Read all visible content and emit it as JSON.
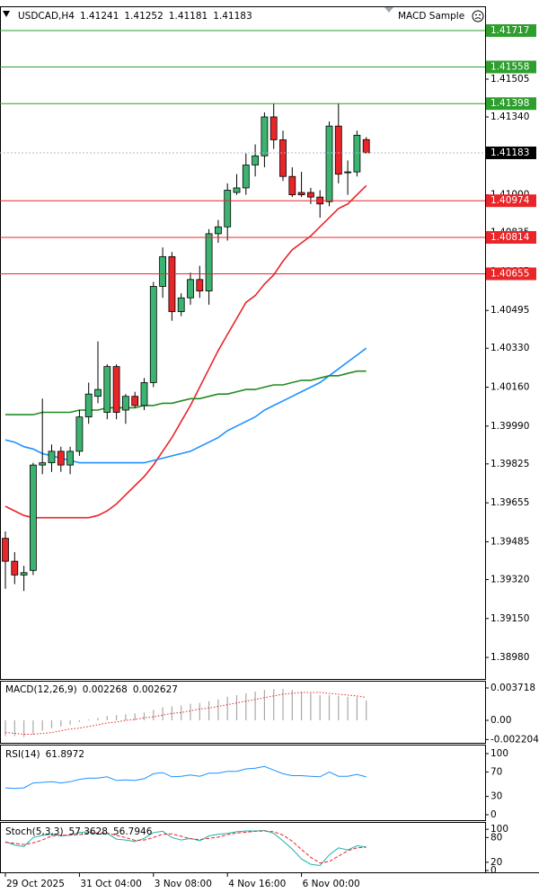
{
  "expert_name": "MACD Sample",
  "chart_data": [
    {
      "type": "candlestick",
      "title": "USDCAD,H4",
      "categories": [
        "29 Oct 2025",
        null,
        null,
        null,
        null,
        null,
        null,
        null,
        "31 Oct 04:00",
        null,
        null,
        null,
        null,
        null,
        null,
        null,
        "3 Nov 08:00",
        null,
        null,
        null,
        null,
        null,
        null,
        null,
        "4 Nov 16:00",
        null,
        null,
        null,
        null,
        null,
        null,
        null,
        "6 Nov 00:00",
        null,
        null,
        null,
        null,
        null,
        null,
        null
      ],
      "open": [
        1.395,
        1.394,
        1.3934,
        1.3936,
        1.3982,
        1.3983,
        1.3988,
        1.3982,
        1.3988,
        1.4003,
        1.4012,
        1.4005,
        1.4025,
        1.4006,
        1.4012,
        1.4008,
        1.4018,
        1.406,
        1.4073,
        1.4049,
        1.4055,
        1.4063,
        1.4058,
        1.4083,
        1.4086,
        1.4101,
        1.4103,
        1.4113,
        1.4117,
        1.4134,
        1.4124,
        1.4108,
        1.4101,
        1.4101,
        1.4099,
        1.4097,
        1.413,
        1.411,
        1.411,
        1.41241
      ],
      "high": [
        1.3953,
        1.3944,
        1.3938,
        1.3983,
        1.4011,
        1.3991,
        1.399,
        1.399,
        1.4006,
        1.4018,
        1.4036,
        1.4026,
        1.4026,
        1.4013,
        1.4014,
        1.402,
        1.4062,
        1.4077,
        1.4075,
        1.4057,
        1.4066,
        1.4069,
        1.4085,
        1.4089,
        1.4105,
        1.4109,
        1.4118,
        1.4122,
        1.4136,
        1.414,
        1.4128,
        1.4112,
        1.411,
        1.4103,
        1.4102,
        1.4132,
        1.414,
        1.4115,
        1.4128,
        1.41252
      ],
      "low": [
        1.3928,
        1.393,
        1.3927,
        1.3934,
        1.3978,
        1.3979,
        1.3979,
        1.3978,
        1.3986,
        1.4,
        1.4009,
        1.4002,
        1.4002,
        1.4,
        1.4007,
        1.4006,
        1.4016,
        1.4055,
        1.4045,
        1.4047,
        1.4052,
        1.4055,
        1.4052,
        1.4079,
        1.408,
        1.41,
        1.41,
        1.4108,
        1.4112,
        1.412,
        1.4106,
        1.4099,
        1.4099,
        1.4096,
        1.409,
        1.4095,
        1.4105,
        1.41,
        1.4108,
        1.41181
      ],
      "close": [
        1.394,
        1.3934,
        1.3935,
        1.3982,
        1.3983,
        1.3988,
        1.3982,
        1.3988,
        1.4003,
        1.4013,
        1.4015,
        1.4025,
        1.4005,
        1.4012,
        1.4008,
        1.4018,
        1.406,
        1.4073,
        1.4049,
        1.4055,
        1.4063,
        1.4058,
        1.4083,
        1.4086,
        1.4102,
        1.4103,
        1.4113,
        1.4117,
        1.4134,
        1.4124,
        1.4108,
        1.41,
        1.41,
        1.4099,
        1.4096,
        1.413,
        1.4109,
        1.411,
        1.4126,
        1.41183
      ],
      "up_color": "#3cb371",
      "down_color": "#e8262a",
      "series": [
        {
          "color": "#e8262a",
          "values": [
            1.3964,
            1.3962,
            1.396,
            1.3959,
            1.3959,
            1.3959,
            1.3959,
            1.3959,
            1.3959,
            1.3959,
            1.396,
            1.3962,
            1.3965,
            1.3969,
            1.3973,
            1.3977,
            1.3982,
            1.3988,
            1.3994,
            1.4001,
            1.4008,
            1.4016,
            1.4024,
            1.4032,
            1.4039,
            1.4046,
            1.4053,
            1.4056,
            1.4061,
            1.4065,
            1.4071,
            1.4076,
            1.4079,
            1.4082,
            1.4086,
            1.409,
            1.4094,
            1.4096,
            1.41,
            1.4104
          ]
        },
        {
          "color": "#1e90ff",
          "values": [
            1.3993,
            1.3992,
            1.399,
            1.3989,
            1.3987,
            1.3986,
            1.3985,
            1.3984,
            1.3983,
            1.3983,
            1.3983,
            1.3983,
            1.3983,
            1.3983,
            1.3983,
            1.3983,
            1.3984,
            1.3985,
            1.3986,
            1.3987,
            1.3988,
            1.399,
            1.3992,
            1.3994,
            1.3997,
            1.3999,
            1.4001,
            1.4003,
            1.4006,
            1.4008,
            1.401,
            1.4012,
            1.4014,
            1.4016,
            1.4018,
            1.4021,
            1.4024,
            1.4027,
            1.403,
            1.4033
          ]
        },
        {
          "color": "#228b22",
          "values": [
            1.4004,
            1.4004,
            1.4004,
            1.4004,
            1.4005,
            1.4005,
            1.4005,
            1.4005,
            1.4006,
            1.4006,
            1.4006,
            1.4007,
            1.4007,
            1.4007,
            1.4007,
            1.4008,
            1.4008,
            1.4009,
            1.4009,
            1.401,
            1.4011,
            1.4011,
            1.4012,
            1.4013,
            1.4013,
            1.4014,
            1.4015,
            1.4015,
            1.4016,
            1.4017,
            1.4017,
            1.4018,
            1.4019,
            1.4019,
            1.402,
            1.4021,
            1.4021,
            1.4022,
            1.4023,
            1.4023
          ]
        }
      ],
      "levels": [
        {
          "value": 1.41717,
          "color": "#2e9e2e"
        },
        {
          "value": 1.41558,
          "color": "#2e9e2e"
        },
        {
          "value": 1.41398,
          "color": "#2e9e2e"
        },
        {
          "value": 1.40974,
          "color": "#e8262a"
        },
        {
          "value": 1.40814,
          "color": "#e8262a"
        },
        {
          "value": 1.40655,
          "color": "#e8262a"
        }
      ],
      "ylim": [
        1.38886,
        1.41819
      ],
      "yticks": [
        1.41505,
        {
          "value": 1.4134,
          "label": "1.41340"
        },
        {
          "value": 1.41,
          "label": "1.41000"
        },
        1.40835,
        1.40665,
        1.40495,
        {
          "value": 1.4033,
          "label": "1.40330"
        },
        {
          "value": 1.4016,
          "label": "1.40160"
        },
        {
          "value": 1.3999,
          "label": "1.39990"
        },
        1.39825,
        1.39655,
        1.39485,
        {
          "value": 1.3932,
          "label": "1.39320"
        },
        {
          "value": 1.3915,
          "label": "1.39150"
        },
        {
          "value": 1.3898,
          "label": "1.38980"
        }
      ]
    },
    {
      "type": "macd",
      "title": "MACD(12,26,9)",
      "series": [
        {
          "color": "#a9a9a9",
          "style": "histogram",
          "values": [
            -0.0018,
            -0.0018,
            -0.0019,
            -0.0016,
            -0.0012,
            -0.0009,
            -0.0007,
            -0.0005,
            -0.0002,
            0.0001,
            0.0003,
            0.0005,
            0.0006,
            0.0007,
            0.0008,
            0.0009,
            0.0012,
            0.0015,
            0.0016,
            0.0017,
            0.0019,
            0.002,
            0.0022,
            0.0024,
            0.0027,
            0.0029,
            0.0031,
            0.0033,
            0.0035,
            0.0036,
            0.0036,
            0.0035,
            0.0033,
            0.0031,
            0.0029,
            0.0029,
            0.0028,
            0.0027,
            0.0027,
            0.002268
          ]
        },
        {
          "color": "#e8262a",
          "style": "dotted",
          "values": [
            -0.0014,
            -0.0015,
            -0.0016,
            -0.0016,
            -0.0015,
            -0.0014,
            -0.0012,
            -0.001,
            -0.0009,
            -0.0007,
            -0.0005,
            -0.0003,
            -0.0002,
            0.0,
            0.0001,
            0.0003,
            0.0004,
            0.0006,
            0.0008,
            0.0009,
            0.0011,
            0.0013,
            0.0014,
            0.0016,
            0.0018,
            0.002,
            0.0022,
            0.0024,
            0.0026,
            0.0028,
            0.003,
            0.0031,
            0.0032,
            0.0032,
            0.0032,
            0.0031,
            0.003,
            0.0029,
            0.0028,
            0.002627
          ]
        }
      ],
      "ylim": [
        -0.00258,
        0.00444
      ],
      "yticks": [
        0.003718,
        {
          "value": 0,
          "label": "0.00"
        },
        -0.002204
      ]
    },
    {
      "type": "rsi",
      "title": "RSI(14)",
      "series": [
        {
          "color": "#1e90ff",
          "style": "solid",
          "values": [
            44,
            43,
            44,
            52,
            53,
            54,
            52,
            54,
            58,
            60,
            60,
            62,
            56,
            57,
            56,
            59,
            67,
            69,
            62,
            63,
            65,
            63,
            68,
            68,
            71,
            71,
            75,
            76,
            79,
            73,
            67,
            64,
            64,
            63,
            62,
            70,
            63,
            63,
            66,
            61.8972
          ]
        }
      ],
      "ylim": [
        -8.8,
        113.2
      ],
      "yticks": [
        100,
        70,
        30,
        0
      ]
    },
    {
      "type": "stochastic",
      "title": "Stoch(5,3,3)",
      "series": [
        {
          "color": "#20b2aa",
          "style": "solid",
          "values": [
            70,
            62,
            58,
            80,
            85,
            88,
            84,
            86,
            92,
            94,
            88,
            90,
            76,
            74,
            70,
            78,
            92,
            95,
            80,
            74,
            78,
            72,
            84,
            88,
            90,
            94,
            96,
            96,
            97,
            90,
            72,
            52,
            28,
            15,
            12,
            38,
            55,
            50,
            60,
            57.3628
          ]
        },
        {
          "color": "#e8262a",
          "style": "dashed",
          "values": [
            68,
            66,
            63,
            67,
            74,
            84,
            86,
            86,
            87,
            91,
            91,
            91,
            85,
            80,
            73,
            74,
            80,
            88,
            89,
            83,
            77,
            75,
            78,
            81,
            87,
            91,
            93,
            95,
            96,
            94,
            86,
            71,
            51,
            32,
            18,
            22,
            35,
            48,
            55,
            56.7946
          ]
        }
      ],
      "ylim": [
        -4.4,
        115.6
      ],
      "yticks": [
        100,
        80,
        20,
        0
      ]
    }
  ]
}
